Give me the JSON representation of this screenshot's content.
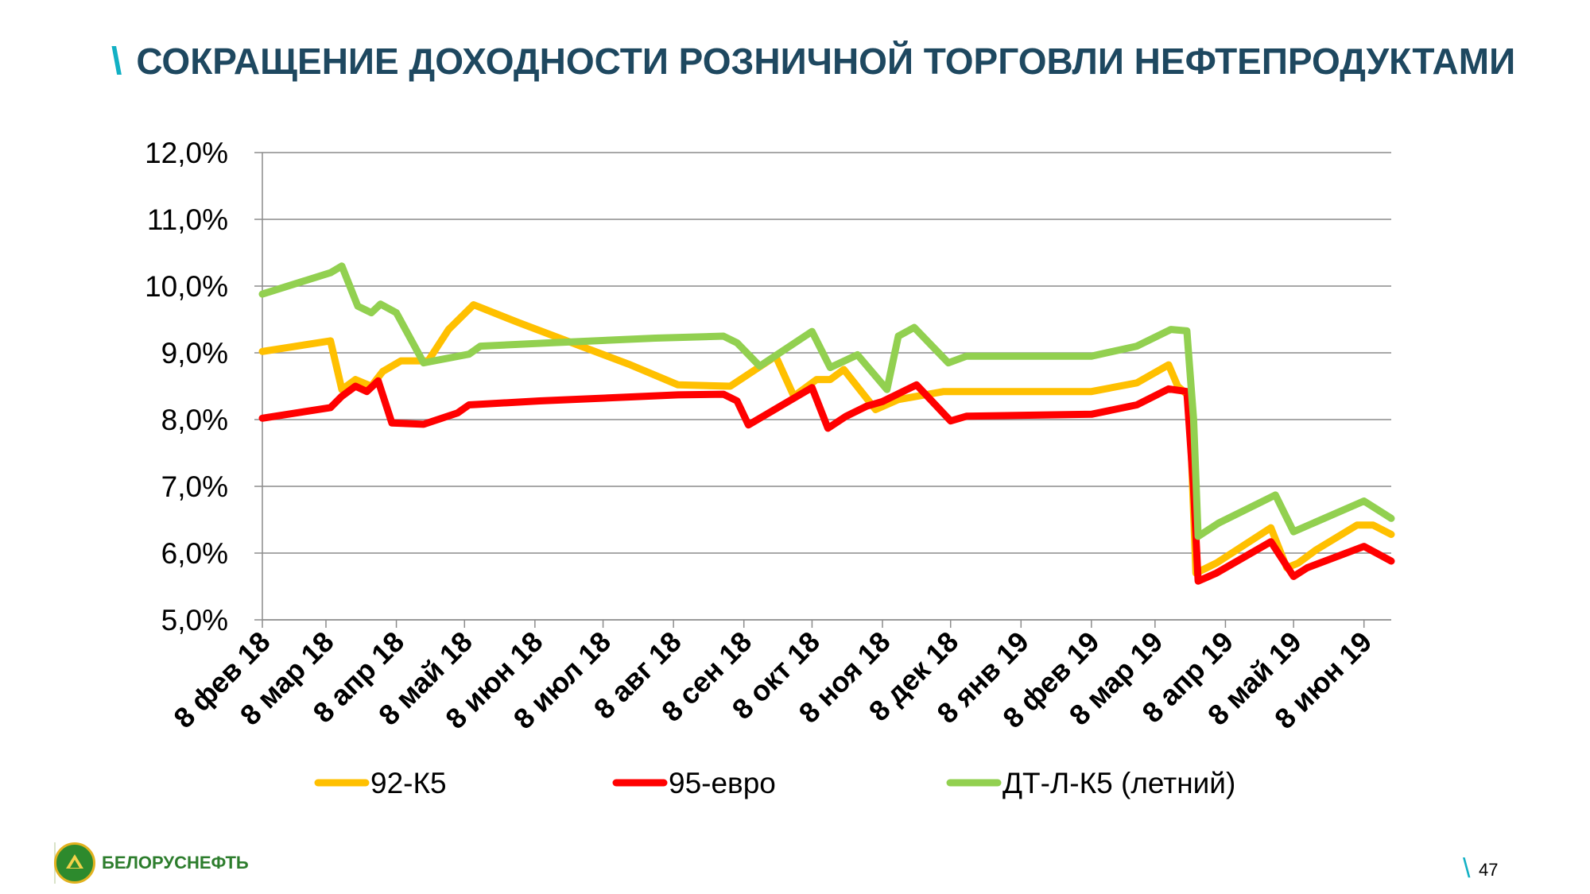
{
  "slide": {
    "title_mark": "\\",
    "title": "СОКРАЩЕНИЕ ДОХОДНОСТИ РОЗНИЧНОЙ ТОРГОВЛИ НЕФТЕПРОДУКТАМИ",
    "logo_text": "БЕЛОРУСНЕФТЬ",
    "page_mark": "\\",
    "page_number": "47"
  },
  "chart_data": {
    "type": "line",
    "title": "",
    "xlabel": "",
    "ylabel": "",
    "x_range": [
      "2018-02-08",
      "2019-06-20"
    ],
    "ylim": [
      5.0,
      12.0
    ],
    "y_ticks": [
      "5,0%",
      "6,0%",
      "7,0%",
      "8,0%",
      "9,0%",
      "10,0%",
      "11,0%",
      "12,0%"
    ],
    "y_tick_values": [
      5,
      6,
      7,
      8,
      9,
      10,
      11,
      12
    ],
    "x_ticks": [
      "8 фев 18",
      "8 мар 18",
      "8 апр 18",
      "8 май 18",
      "8 июн 18",
      "8 июл 18",
      "8 авг 18",
      "8 сен 18",
      "8 окт 18",
      "8 ноя 18",
      "8 дек 18",
      "8 янв 19",
      "8 фев 19",
      "8 мар 19",
      "8 апр 19",
      "8 май 19",
      "8 июн 19"
    ],
    "x_tick_dates": [
      "2018-02-08",
      "2018-03-08",
      "2018-04-08",
      "2018-05-08",
      "2018-06-08",
      "2018-07-08",
      "2018-08-08",
      "2018-09-08",
      "2018-10-08",
      "2018-11-08",
      "2018-12-08",
      "2019-01-08",
      "2019-02-08",
      "2019-03-08",
      "2019-04-08",
      "2019-05-08",
      "2019-06-08"
    ],
    "grid": true,
    "legend_position": "bottom",
    "series": [
      {
        "name": "92-К5",
        "color": "#ffc000",
        "points": [
          [
            "2018-02-08",
            9.02
          ],
          [
            "2018-03-10",
            9.18
          ],
          [
            "2018-03-15",
            8.45
          ],
          [
            "2018-03-21",
            8.6
          ],
          [
            "2018-03-28",
            8.5
          ],
          [
            "2018-04-02",
            8.72
          ],
          [
            "2018-04-10",
            8.88
          ],
          [
            "2018-04-22",
            8.88
          ],
          [
            "2018-05-01",
            9.35
          ],
          [
            "2018-05-12",
            9.72
          ],
          [
            "2018-06-01",
            9.45
          ],
          [
            "2018-07-20",
            8.82
          ],
          [
            "2018-08-10",
            8.52
          ],
          [
            "2018-09-02",
            8.5
          ],
          [
            "2018-09-22",
            8.95
          ],
          [
            "2018-09-30",
            8.35
          ],
          [
            "2018-10-10",
            8.6
          ],
          [
            "2018-10-16",
            8.6
          ],
          [
            "2018-10-22",
            8.75
          ],
          [
            "2018-11-01",
            8.32
          ],
          [
            "2018-11-05",
            8.15
          ],
          [
            "2018-11-15",
            8.3
          ],
          [
            "2018-12-05",
            8.42
          ],
          [
            "2019-02-08",
            8.42
          ],
          [
            "2019-02-28",
            8.55
          ],
          [
            "2019-03-14",
            8.82
          ],
          [
            "2019-03-18",
            8.5
          ],
          [
            "2019-03-23",
            8.35
          ],
          [
            "2019-03-26",
            5.7
          ],
          [
            "2019-04-04",
            5.85
          ],
          [
            "2019-04-28",
            6.38
          ],
          [
            "2019-05-05",
            5.78
          ],
          [
            "2019-05-10",
            5.85
          ],
          [
            "2019-05-18",
            6.05
          ],
          [
            "2019-06-05",
            6.42
          ],
          [
            "2019-06-12",
            6.42
          ],
          [
            "2019-06-20",
            6.28
          ]
        ]
      },
      {
        "name": "95-евро",
        "color": "#ff0000",
        "points": [
          [
            "2018-02-08",
            8.02
          ],
          [
            "2018-03-10",
            8.18
          ],
          [
            "2018-03-15",
            8.35
          ],
          [
            "2018-03-21",
            8.5
          ],
          [
            "2018-03-26",
            8.42
          ],
          [
            "2018-03-31",
            8.58
          ],
          [
            "2018-04-06",
            7.95
          ],
          [
            "2018-04-20",
            7.93
          ],
          [
            "2018-05-05",
            8.1
          ],
          [
            "2018-05-10",
            8.22
          ],
          [
            "2018-06-10",
            8.28
          ],
          [
            "2018-08-10",
            8.37
          ],
          [
            "2018-08-30",
            8.38
          ],
          [
            "2018-09-05",
            8.28
          ],
          [
            "2018-09-10",
            7.92
          ],
          [
            "2018-10-08",
            8.48
          ],
          [
            "2018-10-15",
            7.87
          ],
          [
            "2018-10-23",
            8.05
          ],
          [
            "2018-11-01",
            8.2
          ],
          [
            "2018-11-08",
            8.27
          ],
          [
            "2018-11-23",
            8.52
          ],
          [
            "2018-12-08",
            7.98
          ],
          [
            "2018-12-15",
            8.05
          ],
          [
            "2019-02-08",
            8.08
          ],
          [
            "2019-02-28",
            8.22
          ],
          [
            "2019-03-14",
            8.46
          ],
          [
            "2019-03-22",
            8.42
          ],
          [
            "2019-03-25",
            6.95
          ],
          [
            "2019-03-27",
            5.58
          ],
          [
            "2019-04-04",
            5.7
          ],
          [
            "2019-04-28",
            6.17
          ],
          [
            "2019-05-08",
            5.65
          ],
          [
            "2019-05-14",
            5.78
          ],
          [
            "2019-06-08",
            6.1
          ],
          [
            "2019-06-20",
            5.88
          ]
        ]
      },
      {
        "name": "ДТ-Л-К5 (летний)",
        "color": "#92d050",
        "points": [
          [
            "2018-02-08",
            9.88
          ],
          [
            "2018-03-10",
            10.2
          ],
          [
            "2018-03-15",
            10.3
          ],
          [
            "2018-03-22",
            9.7
          ],
          [
            "2018-03-28",
            9.6
          ],
          [
            "2018-04-01",
            9.73
          ],
          [
            "2018-04-08",
            9.6
          ],
          [
            "2018-04-20",
            8.85
          ],
          [
            "2018-05-10",
            8.98
          ],
          [
            "2018-05-15",
            9.1
          ],
          [
            "2018-06-15",
            9.15
          ],
          [
            "2018-07-31",
            9.22
          ],
          [
            "2018-08-30",
            9.25
          ],
          [
            "2018-09-05",
            9.15
          ],
          [
            "2018-09-15",
            8.8
          ],
          [
            "2018-10-08",
            9.32
          ],
          [
            "2018-10-16",
            8.78
          ],
          [
            "2018-10-28",
            8.97
          ],
          [
            "2018-11-10",
            8.45
          ],
          [
            "2018-11-15",
            9.25
          ],
          [
            "2018-11-22",
            9.38
          ],
          [
            "2018-12-07",
            8.85
          ],
          [
            "2018-12-15",
            8.95
          ],
          [
            "2019-02-08",
            8.95
          ],
          [
            "2019-02-28",
            9.1
          ],
          [
            "2019-03-15",
            9.35
          ],
          [
            "2019-03-22",
            9.33
          ],
          [
            "2019-03-25",
            8.0
          ],
          [
            "2019-03-27",
            6.25
          ],
          [
            "2019-04-05",
            6.45
          ],
          [
            "2019-04-30",
            6.87
          ],
          [
            "2019-05-08",
            6.32
          ],
          [
            "2019-06-08",
            6.78
          ],
          [
            "2019-06-20",
            6.52
          ]
        ]
      }
    ]
  }
}
